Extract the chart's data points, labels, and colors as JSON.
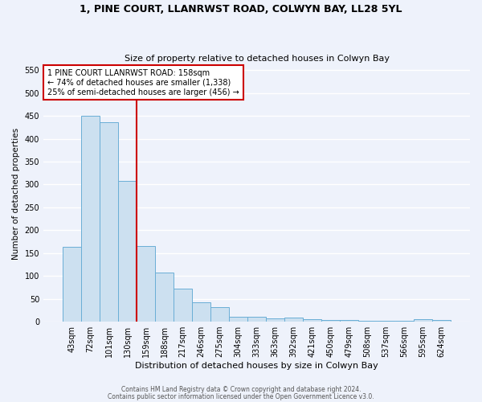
{
  "title1": "1, PINE COURT, LLANRWST ROAD, COLWYN BAY, LL28 5YL",
  "title2": "Size of property relative to detached houses in Colwyn Bay",
  "xlabel": "Distribution of detached houses by size in Colwyn Bay",
  "ylabel": "Number of detached properties",
  "categories": [
    "43sqm",
    "72sqm",
    "101sqm",
    "130sqm",
    "159sqm",
    "188sqm",
    "217sqm",
    "246sqm",
    "275sqm",
    "304sqm",
    "333sqm",
    "363sqm",
    "392sqm",
    "421sqm",
    "450sqm",
    "479sqm",
    "508sqm",
    "537sqm",
    "566sqm",
    "595sqm",
    "624sqm"
  ],
  "values": [
    163,
    450,
    437,
    307,
    165,
    107,
    73,
    43,
    31,
    11,
    11,
    8,
    9,
    5,
    4,
    3,
    2,
    2,
    2,
    5,
    3
  ],
  "bar_color": "#cce0f0",
  "bar_edge_color": "#6aaed6",
  "vline_color": "#cc0000",
  "annotation_text": "1 PINE COURT LLANRWST ROAD: 158sqm\n← 74% of detached houses are smaller (1,338)\n25% of semi-detached houses are larger (456) →",
  "annotation_box_color": "#ffffff",
  "annotation_box_edge": "#cc0000",
  "footer1": "Contains HM Land Registry data © Crown copyright and database right 2024.",
  "footer2": "Contains public sector information licensed under the Open Government Licence v3.0.",
  "ylim": [
    0,
    560
  ],
  "yticks": [
    0,
    50,
    100,
    150,
    200,
    250,
    300,
    350,
    400,
    450,
    500,
    550
  ],
  "bg_color": "#eef2fb",
  "grid_color": "#ffffff",
  "title1_fontsize": 9,
  "title2_fontsize": 8
}
